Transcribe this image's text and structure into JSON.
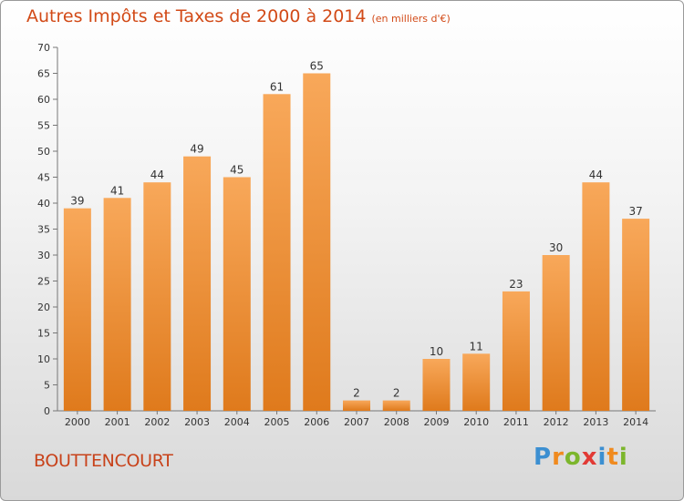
{
  "header": {
    "title": "Autres Impôts et Taxes de 2000 à 2014",
    "unit": "(en milliers d'€)"
  },
  "footer": {
    "commune": "BOUTTENCOURT",
    "logo_text": "Proxiti"
  },
  "colors": {
    "bar_light": "#f8a85a",
    "bar_dark": "#df7a1c",
    "title": "#d24a17",
    "logo_p": "#3c8fd1",
    "logo_r": "#f08a1e",
    "logo_o": "#7cb62c",
    "logo_x": "#e23a35",
    "logo_i": "#3c8fd1"
  },
  "chart_data": {
    "type": "bar",
    "categories": [
      "2000",
      "2001",
      "2002",
      "2003",
      "2004",
      "2005",
      "2006",
      "2007",
      "2008",
      "2009",
      "2010",
      "2011",
      "2012",
      "2013",
      "2014"
    ],
    "values": [
      39,
      41,
      44,
      49,
      45,
      61,
      65,
      2,
      2,
      10,
      11,
      23,
      30,
      44,
      37
    ],
    "ylim": [
      0,
      70
    ],
    "yticks": [
      0,
      5,
      10,
      15,
      20,
      25,
      30,
      35,
      40,
      45,
      50,
      55,
      60,
      65,
      70
    ],
    "grid": false,
    "legend": "none"
  }
}
